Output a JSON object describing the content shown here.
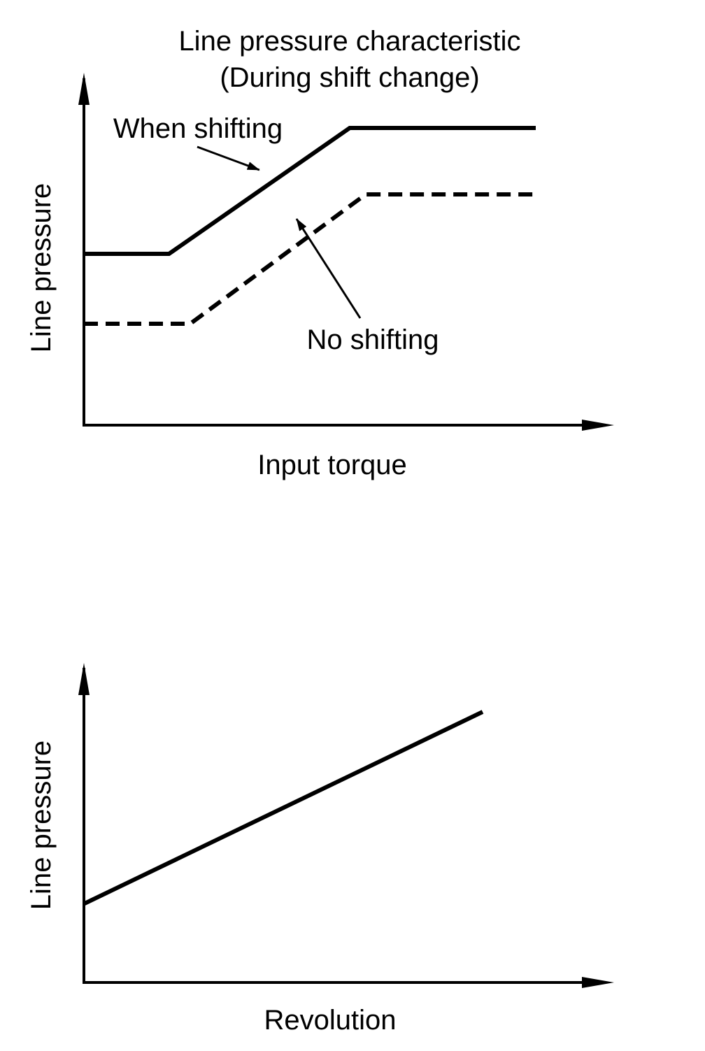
{
  "chart_data": [
    {
      "type": "line",
      "title": "Line pressure characteristic",
      "subtitle": "(During shift change)",
      "xlabel": "Input torque",
      "ylabel": "Line pressure",
      "xlim": [
        0,
        100
      ],
      "ylim": [
        0,
        100
      ],
      "grid": false,
      "axes_style": "arrows",
      "series": [
        {
          "name": "When shifting",
          "style": "solid",
          "x": [
            0,
            16,
            50,
            85
          ],
          "y": [
            49,
            49,
            85,
            85
          ]
        },
        {
          "name": "No shifting",
          "style": "dashed",
          "x": [
            0,
            20,
            53,
            85
          ],
          "y": [
            29,
            29,
            66,
            66
          ]
        }
      ],
      "annotations": [
        {
          "text": "When shifting",
          "series": 0,
          "arrow_to": [
            33,
            73
          ]
        },
        {
          "text": "No shifting",
          "series": 1,
          "arrow_to": [
            40,
            59
          ]
        }
      ]
    },
    {
      "type": "line",
      "title": "",
      "xlabel": "Revolution",
      "ylabel": "Line pressure",
      "xlim": [
        0,
        100
      ],
      "ylim": [
        0,
        100
      ],
      "grid": false,
      "axes_style": "arrows",
      "series": [
        {
          "style": "solid",
          "x": [
            0,
            75
          ],
          "y": [
            25,
            86
          ]
        }
      ]
    }
  ],
  "colors": {
    "ink": "#000000",
    "background": "#ffffff"
  }
}
